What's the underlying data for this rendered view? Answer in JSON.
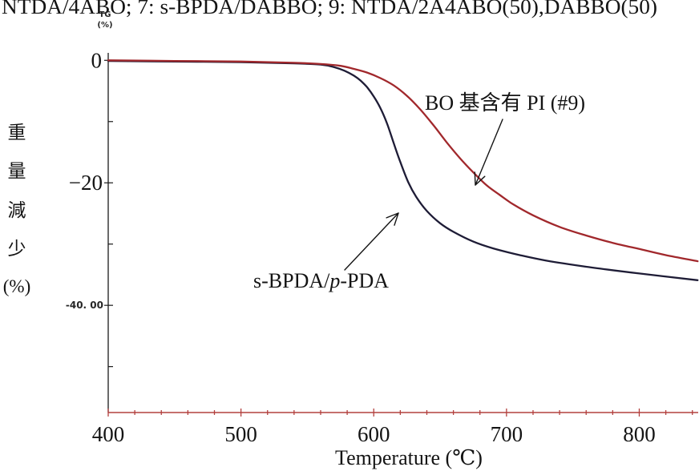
{
  "header_text": "NTDA/4ABO; 7: s-BPDA/DABBO; 9: NTDA/2A4ABO(50),DABBO(50)",
  "chart_data": {
    "type": "line",
    "xlabel": "Temperature (℃)",
    "ylabel": [
      "重",
      "量",
      "減",
      "少",
      "(%)"
    ],
    "axis_caption": [
      "TG",
      "(%)"
    ],
    "xlim": [
      400,
      845
    ],
    "ylim": [
      -57.5,
      2
    ],
    "grid": false,
    "x_ticks": [
      {
        "value": 400,
        "label": "400"
      },
      {
        "value": 500,
        "label": "500"
      },
      {
        "value": 600,
        "label": "600"
      },
      {
        "value": 700,
        "label": "700"
      },
      {
        "value": 800,
        "label": "800"
      }
    ],
    "y_ticks": [
      {
        "value": 0,
        "label": "0"
      },
      {
        "value": -20,
        "label": "−20"
      },
      {
        "value": -40,
        "label": "-40. 00"
      }
    ],
    "colors": {
      "axis": "#1a1a1a",
      "baseline": "#b3403e"
    },
    "series": [
      {
        "name": "s-BPDA/p-PDA",
        "name_italic": "p",
        "color": "#1e1c36",
        "x": [
          400,
          450,
          500,
          540,
          560,
          570,
          578,
          585,
          590,
          595,
          600,
          605,
          610,
          615,
          620,
          626,
          632,
          640,
          650,
          660,
          675,
          690,
          710,
          730,
          760,
          800,
          844
        ],
        "y": [
          -0.1,
          -0.2,
          -0.3,
          -0.5,
          -0.7,
          -1.1,
          -1.7,
          -2.5,
          -3.3,
          -4.4,
          -5.9,
          -7.8,
          -10.3,
          -13.5,
          -16.6,
          -19.9,
          -22.3,
          -24.6,
          -26.6,
          -28.0,
          -29.6,
          -30.7,
          -31.8,
          -32.7,
          -33.7,
          -34.8,
          -35.9
        ]
      },
      {
        "name": "BO 基含有 PI (#9)",
        "color": "#a1282c",
        "x": [
          400,
          450,
          500,
          540,
          560,
          575,
          585,
          595,
          605,
          615,
          625,
          635,
          645,
          655,
          665,
          675,
          685,
          695,
          705,
          720,
          740,
          760,
          780,
          800,
          820,
          844
        ],
        "y": [
          0.0,
          -0.1,
          -0.2,
          -0.4,
          -0.6,
          -0.9,
          -1.4,
          -2.0,
          -2.9,
          -4.1,
          -5.8,
          -8.0,
          -10.6,
          -13.4,
          -16.0,
          -18.3,
          -20.4,
          -22.0,
          -23.5,
          -25.3,
          -27.2,
          -28.6,
          -29.8,
          -30.8,
          -31.8,
          -32.8
        ]
      }
    ]
  }
}
